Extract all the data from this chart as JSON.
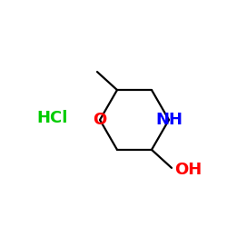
{
  "background_color": "#ffffff",
  "bond_color": "#000000",
  "hcl_color": "#00cc00",
  "oxygen_color": "#ff0000",
  "nitrogen_color": "#0000ff",
  "oh_color": "#ff0000",
  "hcl_text": "HCl",
  "o_text": "O",
  "nh_text": "NH",
  "oh_text": "OH",
  "font_size": 13,
  "lw": 1.6
}
